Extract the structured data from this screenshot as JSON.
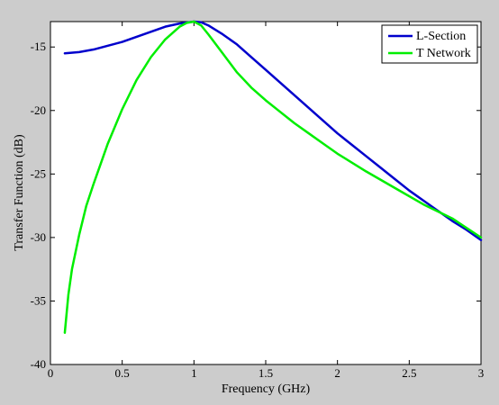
{
  "chart_data": {
    "type": "line",
    "xlabel": "Frequency (GHz)",
    "ylabel": "Transfer Function (dB)",
    "xlim": [
      0,
      3
    ],
    "ylim": [
      -40,
      -13
    ],
    "x_ticks": [
      0,
      0.5,
      1,
      1.5,
      2,
      2.5,
      3
    ],
    "x_tick_labels": [
      "0",
      "0.5",
      "1",
      "1.5",
      "2",
      "2.5",
      "3"
    ],
    "y_ticks": [
      -40,
      -35,
      -30,
      -25,
      -20,
      -15
    ],
    "y_tick_labels": [
      "-40",
      "-35",
      "-30",
      "-25",
      "-20",
      "-15"
    ],
    "grid": false,
    "legend": "top-right",
    "series": [
      {
        "name": "L-Section",
        "color": "#0000cc",
        "x": [
          0.1,
          0.2,
          0.3,
          0.4,
          0.5,
          0.6,
          0.7,
          0.8,
          0.9,
          1.0,
          1.05,
          1.1,
          1.2,
          1.3,
          1.4,
          1.5,
          1.6,
          1.7,
          1.8,
          1.9,
          2.0,
          2.1,
          2.2,
          2.3,
          2.4,
          2.5,
          2.6,
          2.7,
          2.8,
          2.9,
          3.0
        ],
        "y": [
          -15.5,
          -15.4,
          -15.2,
          -14.9,
          -14.6,
          -14.2,
          -13.8,
          -13.4,
          -13.15,
          -13.0,
          -13.05,
          -13.3,
          -14.0,
          -14.8,
          -15.8,
          -16.8,
          -17.8,
          -18.8,
          -19.8,
          -20.8,
          -21.8,
          -22.7,
          -23.6,
          -24.5,
          -25.4,
          -26.3,
          -27.1,
          -27.9,
          -28.7,
          -29.4,
          -30.2
        ]
      },
      {
        "name": "T Network",
        "color": "#00ee00",
        "x": [
          0.1,
          0.125,
          0.15,
          0.2,
          0.25,
          0.3,
          0.35,
          0.4,
          0.5,
          0.6,
          0.7,
          0.8,
          0.9,
          0.95,
          1.0,
          1.05,
          1.1,
          1.2,
          1.3,
          1.4,
          1.5,
          1.6,
          1.7,
          1.8,
          1.9,
          2.0,
          2.2,
          2.4,
          2.6,
          2.8,
          3.0
        ],
        "y": [
          -37.5,
          -34.5,
          -32.5,
          -29.8,
          -27.5,
          -25.8,
          -24.2,
          -22.6,
          -19.9,
          -17.6,
          -15.8,
          -14.4,
          -13.4,
          -13.1,
          -13.0,
          -13.3,
          -14.0,
          -15.5,
          -17.0,
          -18.2,
          -19.2,
          -20.1,
          -21.0,
          -21.8,
          -22.6,
          -23.4,
          -24.8,
          -26.1,
          -27.4,
          -28.5,
          -30.0
        ]
      }
    ]
  }
}
